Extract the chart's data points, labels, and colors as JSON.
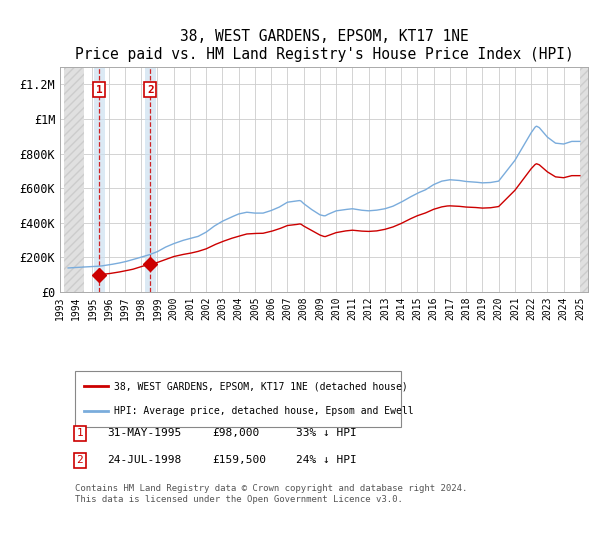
{
  "title": "38, WEST GARDENS, EPSOM, KT17 1NE",
  "subtitle": "Price paid vs. HM Land Registry's House Price Index (HPI)",
  "ylim": [
    0,
    1300000
  ],
  "xlim_start": 1993.25,
  "xlim_end": 2025.5,
  "hatch_left_end": 1994.5,
  "hatch_right_start": 2025.0,
  "yticks": [
    0,
    200000,
    400000,
    600000,
    800000,
    1000000,
    1200000
  ],
  "ytick_labels": [
    "£0",
    "£200K",
    "£400K",
    "£600K",
    "£800K",
    "£1M",
    "£1.2M"
  ],
  "xticks": [
    1993,
    1994,
    1995,
    1996,
    1997,
    1998,
    1999,
    2000,
    2001,
    2002,
    2003,
    2004,
    2005,
    2006,
    2007,
    2008,
    2009,
    2010,
    2011,
    2012,
    2013,
    2014,
    2015,
    2016,
    2017,
    2018,
    2019,
    2020,
    2021,
    2022,
    2023,
    2024,
    2025
  ],
  "sale1_x": 1995.417,
  "sale1_y": 98000,
  "sale2_x": 1998.556,
  "sale2_y": 159500,
  "property_color": "#cc0000",
  "hpi_color": "#7aacdc",
  "sale_box_color": "#cc0000",
  "legend1": "38, WEST GARDENS, EPSOM, KT17 1NE (detached house)",
  "legend2": "HPI: Average price, detached house, Epsom and Ewell",
  "table_row1": [
    "1",
    "31-MAY-1995",
    "£98,000",
    "33% ↓ HPI"
  ],
  "table_row2": [
    "2",
    "24-JUL-1998",
    "£159,500",
    "24% ↓ HPI"
  ],
  "footer": "Contains HM Land Registry data © Crown copyright and database right 2024.\nThis data is licensed under the Open Government Licence v3.0.",
  "bg_color": "#ffffff",
  "grid_color": "#cccccc"
}
